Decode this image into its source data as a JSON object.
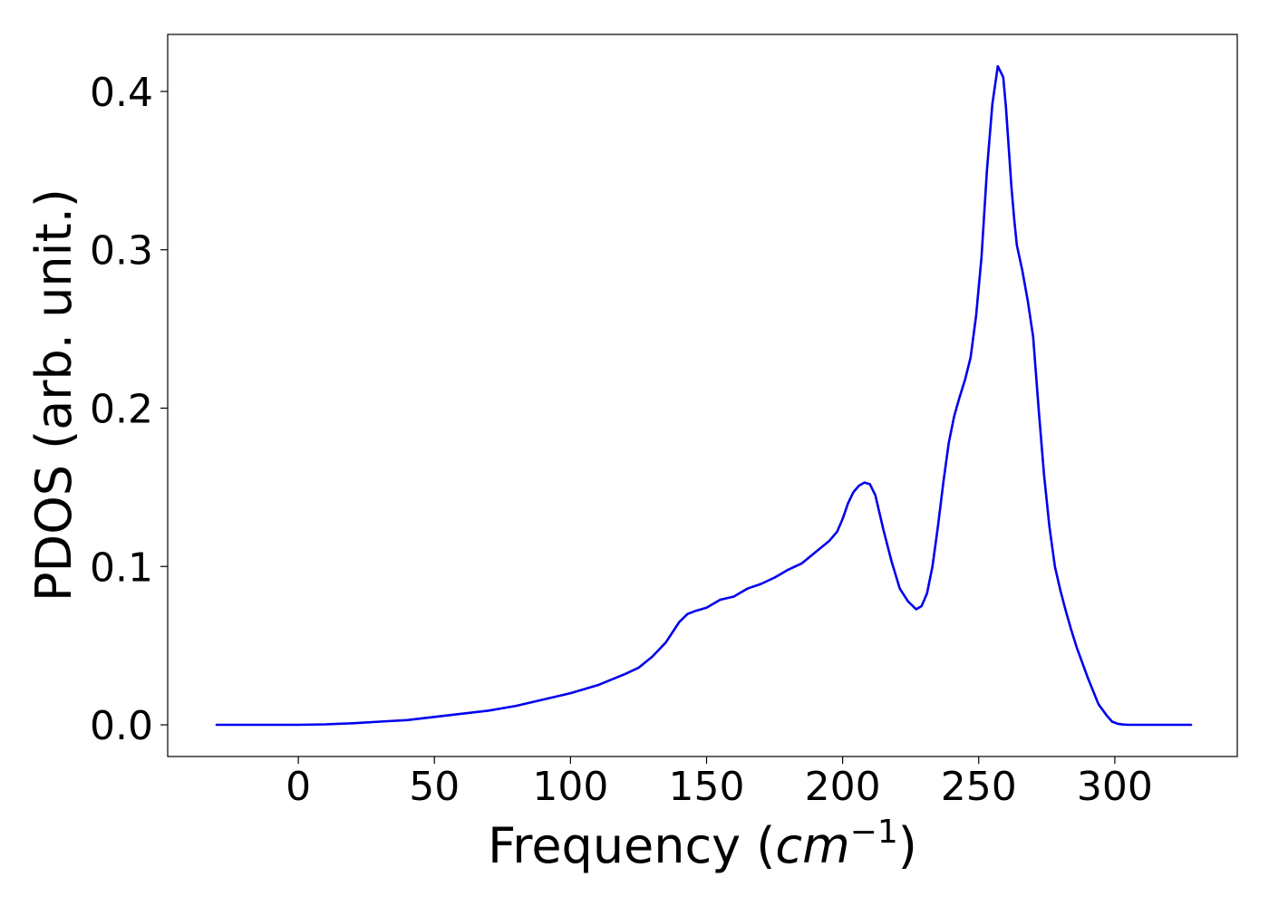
{
  "chart_data": {
    "type": "line",
    "title": "",
    "xlabel": "Frequency (cm⁻¹)",
    "xlabel_parts": {
      "prefix": "Frequency (",
      "unit": "cm",
      "exponent": "−1",
      "suffix": ")"
    },
    "ylabel": "PDOS (arb. unit.)",
    "xlim": [
      -48,
      345
    ],
    "ylim": [
      -0.02,
      0.436
    ],
    "xticks": [
      0,
      50,
      100,
      150,
      200,
      250,
      300
    ],
    "xtick_labels": [
      "0",
      "50",
      "100",
      "150",
      "200",
      "250",
      "300"
    ],
    "yticks": [
      0.0,
      0.1,
      0.2,
      0.3,
      0.4
    ],
    "ytick_labels": [
      "0.0",
      "0.1",
      "0.2",
      "0.3",
      "0.4"
    ],
    "grid": false,
    "legend": "none",
    "colors": {
      "series": "#0000ee",
      "axes": "#000000",
      "background": "#ffffff"
    },
    "series": [
      {
        "color": "#0000ee",
        "x": [
          -30,
          0,
          10,
          20,
          30,
          40,
          50,
          60,
          70,
          80,
          90,
          100,
          110,
          120,
          125,
          130,
          135,
          140,
          143,
          146,
          150,
          155,
          160,
          165,
          170,
          175,
          180,
          185,
          190,
          195,
          198,
          200,
          202,
          204,
          206,
          208,
          210,
          212,
          215,
          218,
          221,
          224,
          227,
          229,
          231,
          233,
          235,
          237,
          239,
          241,
          243,
          245,
          247,
          249,
          251,
          253,
          255,
          257,
          259,
          260,
          261,
          262,
          263,
          264,
          266,
          268,
          270,
          272,
          274,
          276,
          278,
          280,
          282,
          284,
          286,
          290,
          294,
          297,
          299,
          301,
          303,
          305,
          310,
          320,
          328
        ],
        "y": [
          0,
          0,
          0.0003,
          0.001,
          0.002,
          0.003,
          0.005,
          0.007,
          0.009,
          0.012,
          0.016,
          0.02,
          0.025,
          0.032,
          0.036,
          0.043,
          0.052,
          0.065,
          0.07,
          0.072,
          0.074,
          0.079,
          0.081,
          0.086,
          0.089,
          0.093,
          0.098,
          0.102,
          0.109,
          0.116,
          0.122,
          0.13,
          0.14,
          0.147,
          0.151,
          0.153,
          0.152,
          0.145,
          0.123,
          0.103,
          0.086,
          0.078,
          0.073,
          0.075,
          0.083,
          0.1,
          0.125,
          0.153,
          0.178,
          0.195,
          0.207,
          0.218,
          0.232,
          0.258,
          0.295,
          0.35,
          0.392,
          0.416,
          0.409,
          0.39,
          0.365,
          0.34,
          0.32,
          0.303,
          0.287,
          0.268,
          0.245,
          0.2,
          0.158,
          0.125,
          0.1,
          0.085,
          0.072,
          0.06,
          0.049,
          0.03,
          0.013,
          0.006,
          0.002,
          0.0007,
          0.0002,
          0,
          0,
          0,
          0
        ]
      }
    ]
  }
}
